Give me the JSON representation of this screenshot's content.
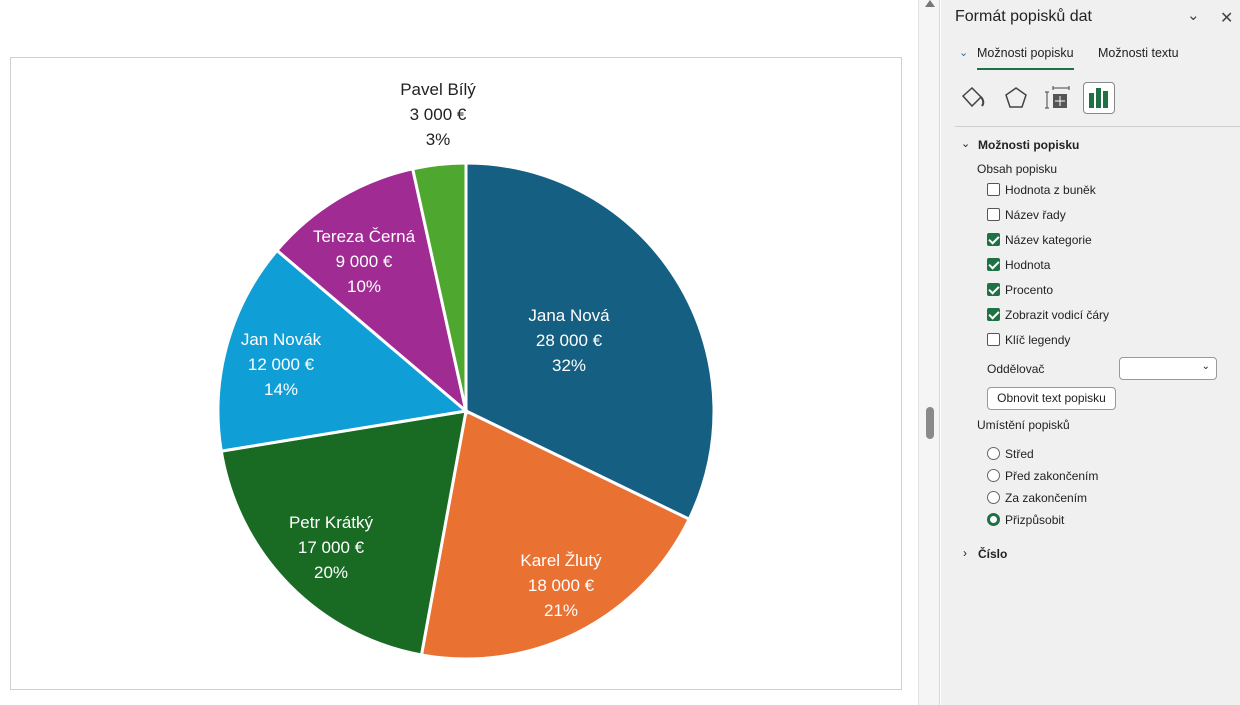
{
  "chart_data": {
    "type": "pie",
    "categories": [
      "Jana Nová",
      "Karel Žlutý",
      "Petr Krátký",
      "Jan Novák",
      "Tereza Černá",
      "Pavel Bílý"
    ],
    "values": [
      28000,
      18000,
      17000,
      12000,
      9000,
      3000
    ],
    "value_labels": [
      "28 000 €",
      "18 000 €",
      "17 000 €",
      "12 000 €",
      "9 000 €",
      "3 000 €"
    ],
    "percent_labels": [
      "32%",
      "21%",
      "20%",
      "14%",
      "10%",
      "3%"
    ],
    "colors": [
      "#155f82",
      "#e97132",
      "#196b24",
      "#0f9ed5",
      "#a02b93",
      "#4ea72e"
    ]
  },
  "panel": {
    "title": "Formát popisků dat",
    "tabs": [
      "Možnosti popisku",
      "Možnosti textu"
    ],
    "section": "Možnosti popisku",
    "content_heading": "Obsah popisku",
    "checkboxes": [
      {
        "label": "Hodnota z buněk",
        "checked": false
      },
      {
        "label": "Název řady",
        "checked": false
      },
      {
        "label": "Název kategorie",
        "checked": true
      },
      {
        "label": "Hodnota",
        "checked": true
      },
      {
        "label": "Procento",
        "checked": true
      },
      {
        "label": "Zobrazit vodicí čáry",
        "checked": true
      },
      {
        "label": "Klíč legendy",
        "checked": false
      }
    ],
    "separator_label": "Oddělovač",
    "separator_value": "",
    "reset_button": "Obnovit text popisku",
    "position_heading": "Umístění popisků",
    "radios": [
      {
        "label": "Střed",
        "checked": false
      },
      {
        "label": "Před zakončením",
        "checked": false
      },
      {
        "label": "Za zakončením",
        "checked": false
      },
      {
        "label": "Přizpůsobit",
        "checked": true
      }
    ],
    "number_section": "Číslo"
  }
}
